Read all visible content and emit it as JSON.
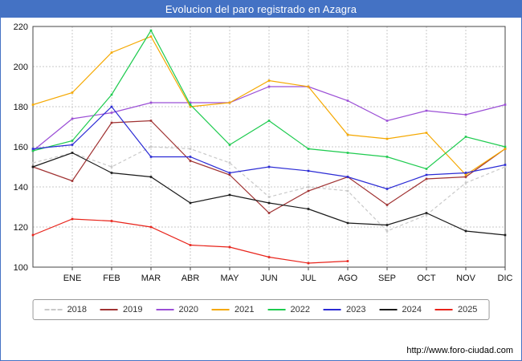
{
  "title": "Evolucion del paro registrado en Azagra",
  "footer": {
    "url": "http://www.foro-ciudad.com"
  },
  "colors": {
    "header_bg": "#4472c4",
    "grid": "#c8c8c8",
    "axis": "#444444",
    "tick_text": "#111111"
  },
  "chart_data": {
    "type": "line",
    "title": "Evolucion del paro registrado en Azagra",
    "xlabel": "",
    "ylabel": "",
    "ylim": [
      100,
      220
    ],
    "yticks": [
      100,
      120,
      140,
      160,
      180,
      200,
      220
    ],
    "grid": true,
    "legend_position": "bottom",
    "months": [
      "ENE",
      "FEB",
      "MAR",
      "ABR",
      "MAY",
      "JUN",
      "JUL",
      "AGO",
      "SEP",
      "OCT",
      "NOV",
      "DIC"
    ],
    "note": "Each series has 13 points: the first is plotted on the left axis before the ENE tick; 2025 ends at AGO.",
    "series": [
      {
        "name": "2018",
        "color": "#c9c9c9",
        "style": "dashed",
        "values": [
          152,
          157,
          150,
          160,
          159,
          152,
          135,
          140,
          138,
          118,
          126,
          142,
          150
        ]
      },
      {
        "name": "2019",
        "color": "#a03232",
        "style": "solid",
        "values": [
          150,
          143,
          172,
          173,
          153,
          146,
          127,
          138,
          145,
          131,
          144,
          145,
          159
        ]
      },
      {
        "name": "2020",
        "color": "#9b4fd6",
        "style": "solid",
        "values": [
          158,
          174,
          177,
          182,
          182,
          182,
          190,
          190,
          183,
          173,
          178,
          176,
          181
        ]
      },
      {
        "name": "2021",
        "color": "#f5a800",
        "style": "solid",
        "values": [
          181,
          187,
          207,
          215,
          180,
          182,
          193,
          190,
          166,
          164,
          167,
          146,
          159
        ]
      },
      {
        "name": "2022",
        "color": "#1ecb4f",
        "style": "solid",
        "values": [
          158,
          163,
          186,
          218,
          181,
          161,
          173,
          159,
          157,
          155,
          149,
          165,
          160
        ]
      },
      {
        "name": "2023",
        "color": "#2b2bd5",
        "style": "solid",
        "values": [
          159,
          161,
          180,
          155,
          155,
          147,
          150,
          148,
          145,
          139,
          146,
          147,
          151
        ]
      },
      {
        "name": "2024",
        "color": "#1a1a1a",
        "style": "solid",
        "values": [
          150,
          157,
          147,
          145,
          132,
          136,
          132,
          129,
          122,
          121,
          127,
          118,
          116
        ]
      },
      {
        "name": "2025",
        "color": "#e8231a",
        "style": "solid",
        "values": [
          116,
          124,
          123,
          120,
          111,
          110,
          105,
          102,
          103
        ]
      }
    ]
  }
}
